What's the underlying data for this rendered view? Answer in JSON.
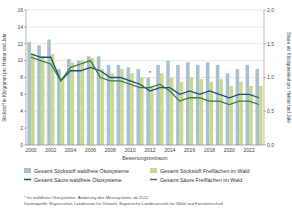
{
  "chart_data": {
    "type": "bar",
    "x_label": "Bewertungszeitraum",
    "y_label": "Stickstoff in Kilogramm pro Hektar und Jahr",
    "y2_label": "Säure als Kiloäquivalent pro Hektar und Jahr",
    "categories": [
      "2000",
      null,
      "2002",
      null,
      "2004",
      null,
      "2006",
      null,
      "2008",
      null,
      "2010",
      null,
      "2012",
      null,
      "2014",
      null,
      "2016",
      null,
      "2018",
      null,
      "2020",
      null,
      "2022",
      null
    ],
    "series": [
      {
        "name": "Gesamt Stickstoff waldfreie Ökosysteme",
        "type": "bar",
        "color": "#a9c0d3",
        "values": [
          12.2,
          11.8,
          12.5,
          9.0,
          10.2,
          10.0,
          10.5,
          10.5,
          9.5,
          9.5,
          9.2,
          9.0,
          8.0,
          9.5,
          10.0,
          9.5,
          9.8,
          9.5,
          9.8,
          9.5,
          8.5,
          9.0,
          9.5,
          9.0
        ]
      },
      {
        "name": "Gesamt Stickstoff Freiflächen im Wald",
        "type": "bar",
        "color": "#c9da8c",
        "values": [
          10.8,
          10.5,
          10.8,
          8.0,
          9.8,
          10.0,
          10.3,
          9.0,
          8.5,
          9.0,
          8.5,
          8.0,
          7.0,
          8.5,
          8.0,
          7.5,
          8.0,
          7.8,
          7.5,
          7.8,
          7.0,
          7.5,
          7.0,
          7.0
        ]
      },
      {
        "name": "Gesamt Säure waldfreie Ökosysteme",
        "type": "line",
        "axis": "y2",
        "color": "#1f4e79",
        "values": [
          1.35,
          1.3,
          1.3,
          0.95,
          1.1,
          1.1,
          1.15,
          1.1,
          1.0,
          1.0,
          0.95,
          0.9,
          0.8,
          0.85,
          0.85,
          0.75,
          0.8,
          0.75,
          0.8,
          0.75,
          0.7,
          0.75,
          0.75,
          0.7
        ]
      },
      {
        "name": "Gesamt Säure Freiflächen im Wald",
        "type": "line",
        "axis": "y2",
        "color": "#3a7d3a",
        "values": [
          1.3,
          1.25,
          1.2,
          0.95,
          1.15,
          1.2,
          1.25,
          1.0,
          0.95,
          0.95,
          0.9,
          0.85,
          0.85,
          0.9,
          0.8,
          0.65,
          0.7,
          0.7,
          0.65,
          0.65,
          0.6,
          0.65,
          0.65,
          0.6
        ]
      }
    ],
    "ylim": [
      0,
      16
    ],
    "yticks": [
      0,
      2,
      4,
      6,
      8,
      10,
      12,
      14,
      16
    ],
    "y2lim": [
      0,
      2
    ],
    "y2ticks": [
      {
        "value": 0,
        "label": "0,0"
      },
      {
        "value": 0.5,
        "label": "0,5"
      },
      {
        "value": 1,
        "label": "1,0"
      },
      {
        "value": 1.5,
        "label": "1,5"
      },
      {
        "value": 2,
        "label": "2,0"
      }
    ],
    "grid": true,
    "legend": "bottom",
    "annotations": [
      {
        "text": "*",
        "x": "2012"
      }
    ],
    "footnotes": [
      "* für waldfreie Ökosysteme: Änderung des Messsystems ab 2012",
      "Datenquelle: Bayerisches Landesamt für Umwelt, Bayerische Landesanstalt für Wald und Forstwirtschaft"
    ]
  }
}
